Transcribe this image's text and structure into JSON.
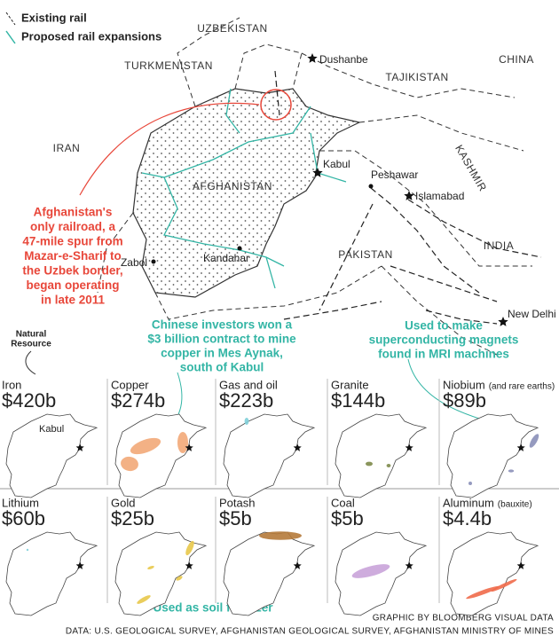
{
  "legend": {
    "existing": "Existing rail",
    "proposed": "Proposed rail expansions"
  },
  "countries": [
    "UZBEKISTAN",
    "TURKMENISTAN",
    "TAJIKISTAN",
    "CHINA",
    "IRAN",
    "AFGHANISTAN",
    "KASHMIR",
    "PAKISTAN",
    "INDIA"
  ],
  "cities": [
    "Dushanbe",
    "Kabul",
    "Peshawar",
    "Islamabad",
    "Kandahar",
    "Zabol",
    "New Delhi"
  ],
  "annotations": {
    "railroad": [
      "Afghanistan's",
      "only railroad, a",
      "47-mile spur from",
      "Mazar-e-Sharif to",
      "the Uzbek border,",
      "began operating",
      "in late 2011"
    ],
    "copper": [
      "Chinese investors won a",
      "$3 billion contract to mine",
      "copper in Mes Aynak,",
      "south of Kabul"
    ],
    "niobium": [
      "Used to make",
      "superconducting magnets",
      "found in MRI machines"
    ],
    "potash": "Used as soil fertilizer",
    "natural_resource": [
      "Natural",
      "Resource"
    ]
  },
  "resources": [
    {
      "name": "Iron",
      "value": "$420b",
      "color": "#b5424e",
      "city": "Kabul"
    },
    {
      "name": "Copper",
      "value": "$274b",
      "color": "#f2a878"
    },
    {
      "name": "Gas and oil",
      "value": "$223b",
      "color": "#7fcfd9"
    },
    {
      "name": "Granite",
      "value": "$144b",
      "color": "#7d8a4a"
    },
    {
      "name": "Niobium",
      "note": "(and rare earths)",
      "value": "$89b",
      "color": "#8a8fb8"
    },
    {
      "name": "Lithium",
      "value": "$60b",
      "color": "#7fcfd9"
    },
    {
      "name": "Gold",
      "value": "$25b",
      "color": "#e8c84a"
    },
    {
      "name": "Potash",
      "value": "$5b",
      "color": "#b57a3a"
    },
    {
      "name": "Coal",
      "value": "$5b",
      "color": "#c9a3d9"
    },
    {
      "name": "Aluminum",
      "note": "(bauxite)",
      "value": "$4.4b",
      "color": "#ef6a4a"
    }
  ],
  "footer": {
    "credit": "GRAPHIC BY BLOOMBERG VISUAL DATA",
    "source": "DATA: U.S. GEOLOGICAL SURVEY, AFGHANISTAN GEOLOGICAL SURVEY, AFGHANISTAN MINISTRY OF MINES"
  }
}
